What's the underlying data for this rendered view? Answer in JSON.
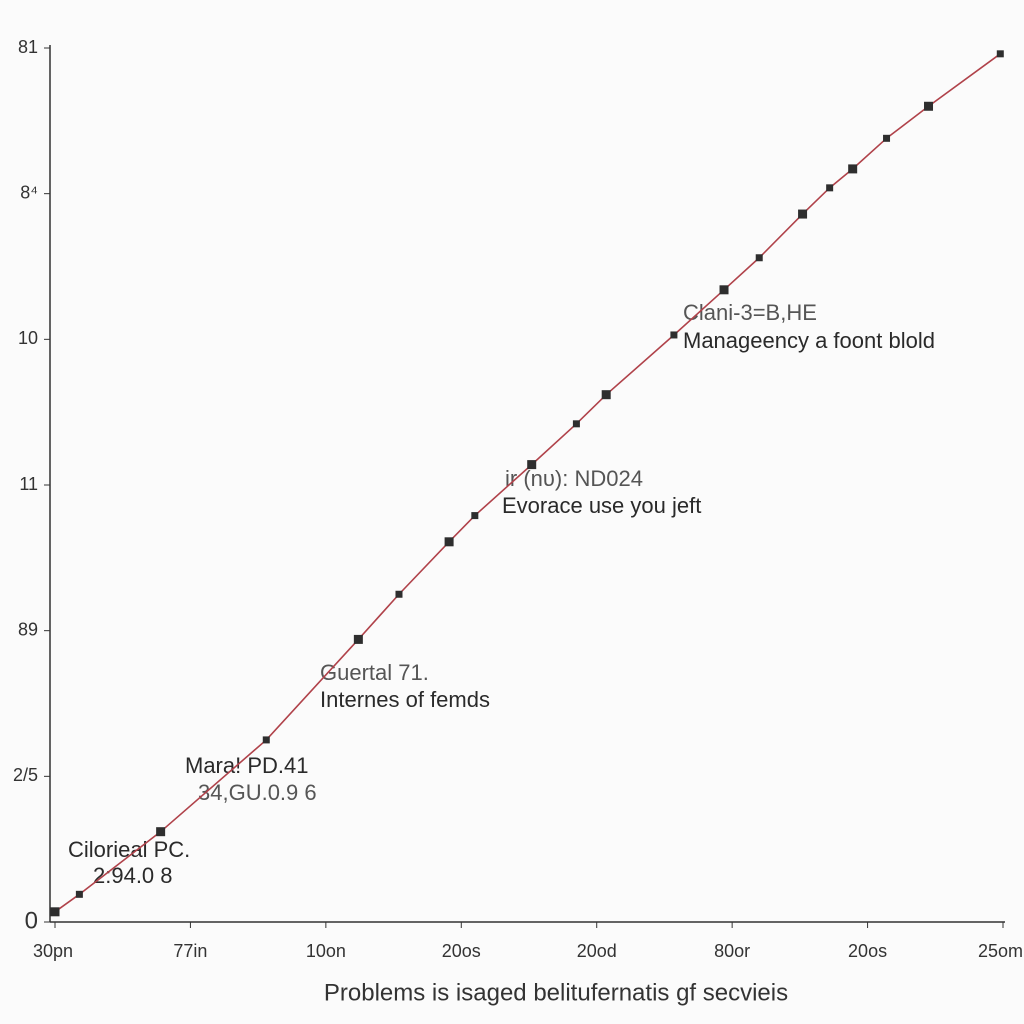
{
  "chart_data": {
    "type": "line",
    "xlabel": "Problems is isaged belitufernatis gf secvieis",
    "annotations": [
      "Clani-3=B,HE",
      "Manageency a foont blold",
      "ir (nυ): ND024",
      "Evorace use you jeft",
      "Guertal 71.",
      "Internes of femds",
      "Mara! PD.41",
      "34,GU.0.9 6",
      "Cilorieal PC.",
      "2:94.0 8"
    ],
    "xlim": [
      0,
      7
    ],
    "xticks": [
      {
        "value": 0,
        "label": "30pn"
      },
      {
        "value": 1,
        "label": "77in"
      },
      {
        "value": 2,
        "label": "10on"
      },
      {
        "value": 3,
        "label": "20os"
      },
      {
        "value": 4,
        "label": "20od"
      },
      {
        "value": 5,
        "label": "80or"
      },
      {
        "value": 6,
        "label": "20os"
      },
      {
        "value": 7,
        "label": "25om"
      }
    ],
    "ylim": [
      0,
      6
    ],
    "yticks": [
      0,
      {
        "value": 1,
        "label": "2/5"
      },
      {
        "value": 2,
        "label": "89"
      },
      {
        "value": 3,
        "label": "11"
      },
      {
        "value": 4,
        "label": "10"
      },
      {
        "value": 5,
        "label": "8⁴"
      },
      {
        "value": 6,
        "label": "81"
      }
    ],
    "series": [
      {
        "color": "#b0424a",
        "marker_color": "#2e2e2e",
        "x": [
          0,
          0.18,
          0.78,
          1.56,
          2.24,
          2.54,
          2.91,
          3.1,
          3.52,
          3.85,
          4.07,
          4.57,
          4.94,
          5.2,
          5.52,
          5.72,
          5.89,
          6.14,
          6.45,
          6.98
        ],
        "values": [
          0.07,
          0.19,
          0.62,
          1.25,
          1.94,
          2.25,
          2.61,
          2.79,
          3.14,
          3.42,
          3.62,
          4.03,
          4.34,
          4.56,
          4.86,
          5.04,
          5.17,
          5.38,
          5.6,
          5.96
        ]
      }
    ]
  }
}
